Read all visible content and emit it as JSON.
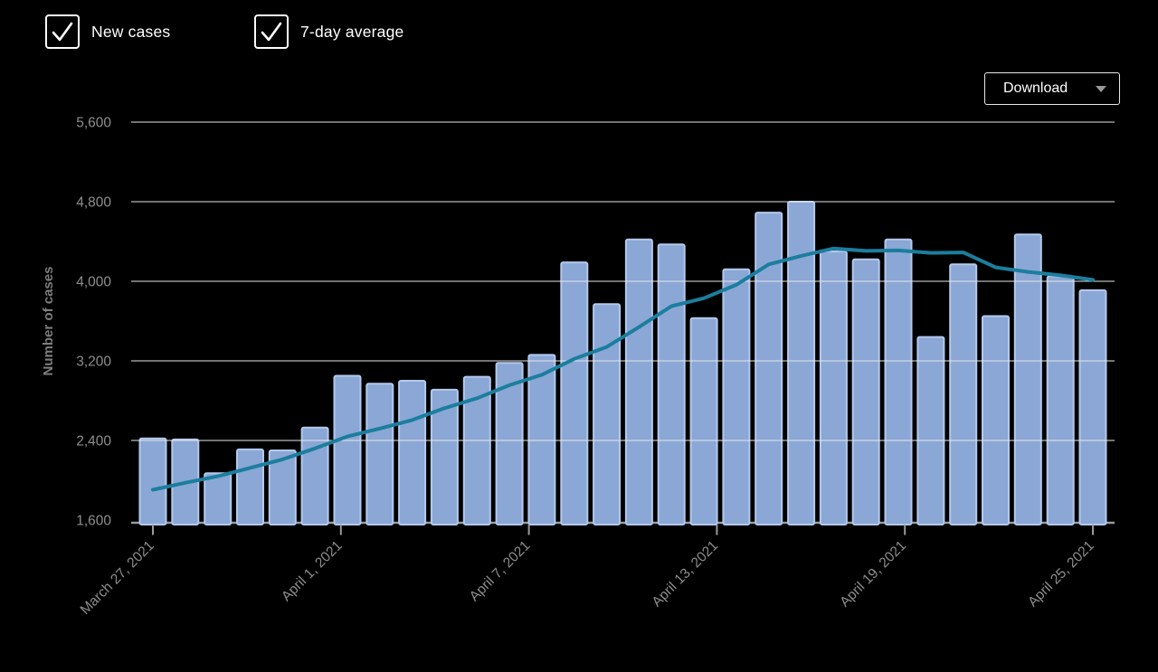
{
  "legend": {
    "items": [
      {
        "label": "New cases",
        "checked": true
      },
      {
        "label": "7-day average",
        "checked": true
      }
    ]
  },
  "toolbar": {
    "download_label": "Download"
  },
  "colors": {
    "background": "#000000",
    "bar_fill": "#8ba7d5",
    "bar_border": "#b3c9ec",
    "line": "#1b7e9e",
    "gridline": "#e6e6e6",
    "axis_line": "#9a9a9a",
    "axis_text": "#8e8e8e",
    "axis_title": "#7e7e7e",
    "text": "#ffffff",
    "caret": "#999999"
  },
  "chart_data": {
    "type": "bar",
    "title": "",
    "xlabel": "",
    "ylabel": "Number of cases",
    "ylim": [
      1600,
      5600
    ],
    "y_ticks": [
      1600,
      2400,
      3200,
      4000,
      4800,
      5600
    ],
    "grid": true,
    "legend_position": "top-left-checkboxes",
    "x_tick_labels": [
      "March 27, 2021",
      "April 1, 2021",
      "April 7, 2021",
      "April 13, 2021",
      "April 19, 2021",
      "April 25, 2021"
    ],
    "x_tick_day_positions": [
      0,
      5.8,
      11.6,
      17.4,
      23.2,
      29
    ],
    "categories": [
      "March 27, 2021",
      "March 28, 2021",
      "March 29, 2021",
      "March 30, 2021",
      "March 31, 2021",
      "April 1, 2021",
      "April 2, 2021",
      "April 3, 2021",
      "April 4, 2021",
      "April 5, 2021",
      "April 6, 2021",
      "April 7, 2021",
      "April 8, 2021",
      "April 9, 2021",
      "April 10, 2021",
      "April 11, 2021",
      "April 12, 2021",
      "April 13, 2021",
      "April 14, 2021",
      "April 15, 2021",
      "April 16, 2021",
      "April 17, 2021",
      "April 18, 2021",
      "April 19, 2021",
      "April 20, 2021",
      "April 21, 2021",
      "April 22, 2021",
      "April 23, 2021",
      "April 24, 2021",
      "April 25, 2021"
    ],
    "series": [
      {
        "name": "New cases",
        "type": "bar",
        "values": [
          2420,
          2410,
          2070,
          2310,
          2300,
          2530,
          3050,
          2970,
          3000,
          2910,
          3040,
          3180,
          3260,
          4190,
          3770,
          4420,
          4370,
          3630,
          4120,
          4690,
          4800,
          4300,
          4220,
          4420,
          3440,
          4170,
          3650,
          4470,
          4050,
          3910
        ]
      },
      {
        "name": "7-day average",
        "type": "line",
        "values": [
          1905,
          1975,
          2040,
          2125,
          2210,
          2320,
          2440,
          2520,
          2605,
          2725,
          2825,
          2955,
          3060,
          3220,
          3340,
          3540,
          3750,
          3830,
          3965,
          4170,
          4255,
          4330,
          4305,
          4310,
          4285,
          4290,
          4140,
          4095,
          4060,
          4015
        ]
      }
    ]
  }
}
